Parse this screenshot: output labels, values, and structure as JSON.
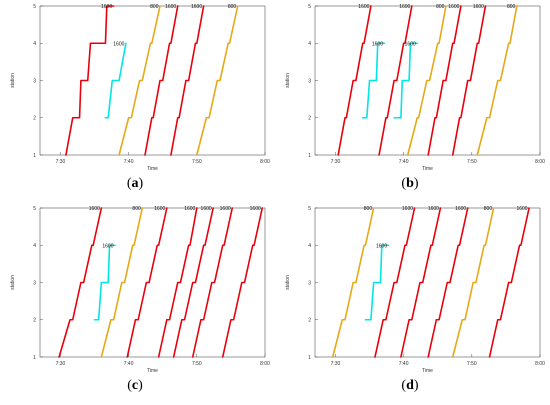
{
  "chart_data": [
    {
      "type": "line",
      "caption_letter": "a",
      "xlabel": "Time",
      "ylabel": "station",
      "x_ticks": [
        "7:30",
        "7:40",
        "7:50",
        "8:00"
      ],
      "y_ticks": [
        "1",
        "2",
        "3",
        "4",
        "5"
      ],
      "xlim": [
        "7:27",
        "8:00"
      ],
      "ylim": [
        1,
        5
      ],
      "series": [
        {
          "name": "1600",
          "color": "#e8000b",
          "x": [
            "7:30.8",
            "7:31.8",
            "7:32.8",
            "7:33.0",
            "7:34.0",
            "7:34.4",
            "7:35.4",
            "7:35.6",
            "7:36.6",
            "7:36.8",
            "7:37.8"
          ],
          "y": [
            1,
            2,
            2,
            3,
            3,
            4,
            4,
            4,
            4,
            5,
            5
          ]
        },
        {
          "name": "1600",
          "color": "#00e5e5",
          "x": [
            "7:36.6",
            "7:37.0",
            "7:37.6",
            "7:38.6",
            "7:39.6"
          ],
          "y": [
            2,
            2,
            3,
            3,
            4
          ]
        },
        {
          "name": "800",
          "color": "#e6a817",
          "x": [
            "7:38.6",
            "7:40.0",
            "7:40.4",
            "7:41.6",
            "7:42.0",
            "7:43.2",
            "7:43.4",
            "7:44.6"
          ],
          "y": [
            1,
            2,
            2,
            3,
            3,
            4,
            4,
            5
          ]
        },
        {
          "name": "1600",
          "color": "#e8000b",
          "x": [
            "7:42.4",
            "7:43.4",
            "7:43.6",
            "7:44.6",
            "7:45.0",
            "7:46.0",
            "7:46.2",
            "7:47.2"
          ],
          "y": [
            1,
            2,
            2,
            3,
            3,
            4,
            4,
            5
          ]
        },
        {
          "name": "1600",
          "color": "#e8000b",
          "x": [
            "7:46.2",
            "7:47.2",
            "7:47.4",
            "7:48.4",
            "7:48.8",
            "7:49.8",
            "7:50.0",
            "7:51.0"
          ],
          "y": [
            1,
            2,
            2,
            3,
            3,
            4,
            4,
            5
          ]
        },
        {
          "name": "800",
          "color": "#e6a817",
          "x": [
            "7:50.0",
            "7:51.4",
            "7:51.8",
            "7:53.0",
            "7:53.4",
            "7:54.6",
            "7:54.8",
            "7:56.0"
          ],
          "y": [
            1,
            2,
            2,
            3,
            3,
            4,
            4,
            5
          ]
        }
      ],
      "labels": [
        {
          "text": "1600",
          "x": "7:37.8",
          "y": 5
        },
        {
          "text": "1600",
          "x": "7:39.6",
          "y": 4
        },
        {
          "text": "800",
          "x": "7:44.6",
          "y": 5
        },
        {
          "text": "1600",
          "x": "7:47.2",
          "y": 5
        },
        {
          "text": "1600",
          "x": "7:51.0",
          "y": 5
        },
        {
          "text": "800",
          "x": "7:56.0",
          "y": 5
        }
      ]
    },
    {
      "type": "line",
      "caption_letter": "b",
      "xlabel": "Time",
      "ylabel": "station",
      "x_ticks": [
        "7:30",
        "7:40",
        "7:50",
        "8:00"
      ],
      "y_ticks": [
        "1",
        "2",
        "3",
        "4",
        "5"
      ],
      "xlim": [
        "7:27",
        "8:00"
      ],
      "ylim": [
        1,
        5
      ],
      "series": [
        {
          "name": "1600",
          "color": "#e8000b",
          "x": [
            "7:30.4",
            "7:31.4",
            "7:31.6",
            "7:32.6",
            "7:33.0",
            "7:34.0",
            "7:34.2",
            "7:35.2"
          ],
          "y": [
            1,
            2,
            2,
            3,
            3,
            4,
            4,
            5
          ]
        },
        {
          "name": "1600",
          "color": "#00e5e5",
          "x": [
            "7:34.0",
            "7:34.6",
            "7:35.0",
            "7:36.0",
            "7:36.2",
            "7:37.2"
          ],
          "y": [
            2,
            2,
            3,
            3,
            4,
            4
          ]
        },
        {
          "name": "1600",
          "color": "#e8000b",
          "x": [
            "7:36.4",
            "7:37.4",
            "7:37.6",
            "7:38.6",
            "7:39.0",
            "7:40.0",
            "7:40.2",
            "7:41.2"
          ],
          "y": [
            1,
            2,
            2,
            3,
            3,
            4,
            4,
            5
          ]
        },
        {
          "name": "1600",
          "color": "#00e5e5",
          "x": [
            "7:38.6",
            "7:39.6",
            "7:39.8",
            "7:40.8",
            "7:41.0",
            "7:42.0"
          ],
          "y": [
            2,
            2,
            3,
            3,
            4,
            4
          ]
        },
        {
          "name": "800",
          "color": "#e6a817",
          "x": [
            "7:40.6",
            "7:42.0",
            "7:42.2",
            "7:43.4",
            "7:43.8",
            "7:45.0",
            "7:45.2",
            "7:46.2"
          ],
          "y": [
            1,
            2,
            2,
            3,
            3,
            4,
            4,
            5
          ]
        },
        {
          "name": "1600",
          "color": "#e8000b",
          "x": [
            "7:43.6",
            "7:44.6",
            "7:44.8",
            "7:45.8",
            "7:46.2",
            "7:47.2",
            "7:47.4",
            "7:48.4"
          ],
          "y": [
            1,
            2,
            2,
            3,
            3,
            4,
            4,
            5
          ]
        },
        {
          "name": "1600",
          "color": "#e8000b",
          "x": [
            "7:47.2",
            "7:48.2",
            "7:48.4",
            "7:49.4",
            "7:49.8",
            "7:50.8",
            "7:51.0",
            "7:52.0"
          ],
          "y": [
            1,
            2,
            2,
            3,
            3,
            4,
            4,
            5
          ]
        },
        {
          "name": "800",
          "color": "#e6a817",
          "x": [
            "7:50.8",
            "7:52.2",
            "7:52.6",
            "7:53.8",
            "7:54.2",
            "7:55.4",
            "7:55.6",
            "7:56.6"
          ],
          "y": [
            1,
            2,
            2,
            3,
            3,
            4,
            4,
            5
          ]
        }
      ],
      "labels": [
        {
          "text": "1600",
          "x": "7:35.2",
          "y": 5
        },
        {
          "text": "1600",
          "x": "7:37.2",
          "y": 4
        },
        {
          "text": "1600",
          "x": "7:41.2",
          "y": 5
        },
        {
          "text": "1600",
          "x": "7:42.0",
          "y": 4
        },
        {
          "text": "800",
          "x": "7:46.2",
          "y": 5
        },
        {
          "text": "1600",
          "x": "7:48.4",
          "y": 5
        },
        {
          "text": "1600",
          "x": "7:52.0",
          "y": 5
        },
        {
          "text": "800",
          "x": "7:56.6",
          "y": 5
        }
      ]
    },
    {
      "type": "line",
      "caption_letter": "c",
      "xlabel": "Time",
      "ylabel": "station",
      "x_ticks": [
        "7:30",
        "7:40",
        "7:50",
        "8:00"
      ],
      "y_ticks": [
        "1",
        "2",
        "3",
        "4",
        "5"
      ],
      "xlim": [
        "7:27",
        "8:00"
      ],
      "ylim": [
        1,
        5
      ],
      "series": [
        {
          "name": "1600",
          "color": "#e8000b",
          "x": [
            "7:29.8",
            "7:31.4",
            "7:31.8",
            "7:33.0",
            "7:33.4",
            "7:34.6",
            "7:34.8",
            "7:36.0"
          ],
          "y": [
            1,
            2,
            2,
            3,
            3,
            4,
            4,
            5
          ]
        },
        {
          "name": "1600",
          "color": "#00e5e5",
          "x": [
            "7:35.0",
            "7:35.6",
            "7:36.0",
            "7:37.0",
            "7:37.2",
            "7:38.0"
          ],
          "y": [
            2,
            2,
            3,
            3,
            4,
            4
          ]
        },
        {
          "name": "800",
          "color": "#e6a817",
          "x": [
            "7:36.0",
            "7:37.4",
            "7:37.8",
            "7:39.0",
            "7:39.4",
            "7:40.6",
            "7:40.8",
            "7:42.0"
          ],
          "y": [
            1,
            2,
            2,
            3,
            3,
            4,
            4,
            5
          ]
        },
        {
          "name": "1600",
          "color": "#e8000b",
          "x": [
            "7:39.8",
            "7:41.0",
            "7:41.4",
            "7:42.6",
            "7:43.0",
            "7:44.2",
            "7:44.4",
            "7:45.6"
          ],
          "y": [
            1,
            2,
            2,
            3,
            3,
            4,
            4,
            5
          ]
        },
        {
          "name": "1600",
          "color": "#e8000b",
          "x": [
            "7:44.4",
            "7:45.6",
            "7:46.0",
            "7:47.2",
            "7:47.6",
            "7:48.8",
            "7:49.0",
            "7:50.0"
          ],
          "y": [
            1,
            2,
            2,
            3,
            3,
            4,
            4,
            5
          ]
        },
        {
          "name": "1600",
          "color": "#e8000b",
          "x": [
            "7:46.6",
            "7:47.8",
            "7:48.2",
            "7:49.4",
            "7:49.8",
            "7:51.0",
            "7:51.2",
            "7:52.4"
          ],
          "y": [
            1,
            2,
            2,
            3,
            3,
            4,
            4,
            5
          ]
        },
        {
          "name": "1600",
          "color": "#e8000b",
          "x": [
            "7:49.4",
            "7:50.6",
            "7:51.0",
            "7:52.2",
            "7:52.6",
            "7:53.8",
            "7:54.0",
            "7:55.2"
          ],
          "y": [
            1,
            2,
            2,
            3,
            3,
            4,
            4,
            5
          ]
        },
        {
          "name": "1600",
          "color": "#e8000b",
          "x": [
            "7:53.8",
            "7:55.0",
            "7:55.4",
            "7:56.6",
            "7:57.0",
            "7:58.2",
            "7:58.4",
            "7:59.6"
          ],
          "y": [
            1,
            2,
            2,
            3,
            3,
            4,
            4,
            5
          ]
        }
      ],
      "labels": [
        {
          "text": "1600",
          "x": "7:36.0",
          "y": 5
        },
        {
          "text": "1600",
          "x": "7:38.0",
          "y": 4
        },
        {
          "text": "800",
          "x": "7:42.0",
          "y": 5
        },
        {
          "text": "1600",
          "x": "7:45.6",
          "y": 5
        },
        {
          "text": "1600",
          "x": "7:50.0",
          "y": 5
        },
        {
          "text": "1600",
          "x": "7:52.4",
          "y": 5
        },
        {
          "text": "1600",
          "x": "7:55.2",
          "y": 5
        },
        {
          "text": "1600",
          "x": "7:59.6",
          "y": 5
        }
      ]
    },
    {
      "type": "line",
      "caption_letter": "d",
      "xlabel": "Time",
      "ylabel": "station",
      "x_ticks": [
        "7:30",
        "7:40",
        "7:50",
        "8:00"
      ],
      "y_ticks": [
        "1",
        "2",
        "3",
        "4",
        "5"
      ],
      "xlim": [
        "7:27",
        "8:00"
      ],
      "ylim": [
        1,
        5
      ],
      "series": [
        {
          "name": "800",
          "color": "#e6a817",
          "x": [
            "7:29.6",
            "7:31.0",
            "7:31.4",
            "7:32.6",
            "7:33.0",
            "7:34.2",
            "7:34.4",
            "7:35.6"
          ],
          "y": [
            1,
            2,
            2,
            3,
            3,
            4,
            4,
            5
          ]
        },
        {
          "name": "1600",
          "color": "#00e5e5",
          "x": [
            "7:34.4",
            "7:35.2",
            "7:35.6",
            "7:36.6",
            "7:36.8",
            "7:37.8"
          ],
          "y": [
            2,
            2,
            3,
            3,
            4,
            4
          ]
        },
        {
          "name": "1600",
          "color": "#e8000b",
          "x": [
            "7:35.8",
            "7:37.0",
            "7:37.4",
            "7:38.6",
            "7:39.0",
            "7:40.2",
            "7:40.4",
            "7:41.6"
          ],
          "y": [
            1,
            2,
            2,
            3,
            3,
            4,
            4,
            5
          ]
        },
        {
          "name": "1600",
          "color": "#e8000b",
          "x": [
            "7:39.6",
            "7:40.8",
            "7:41.2",
            "7:42.4",
            "7:42.8",
            "7:44.0",
            "7:44.2",
            "7:45.4"
          ],
          "y": [
            1,
            2,
            2,
            3,
            3,
            4,
            4,
            5
          ]
        },
        {
          "name": "1600",
          "color": "#e8000b",
          "x": [
            "7:43.6",
            "7:44.8",
            "7:45.2",
            "7:46.4",
            "7:46.8",
            "7:48.0",
            "7:48.2",
            "7:49.4"
          ],
          "y": [
            1,
            2,
            2,
            3,
            3,
            4,
            4,
            5
          ]
        },
        {
          "name": "800",
          "color": "#e6a817",
          "x": [
            "7:47.2",
            "7:48.6",
            "7:49.0",
            "7:50.2",
            "7:50.6",
            "7:51.8",
            "7:52.0",
            "7:53.2"
          ],
          "y": [
            1,
            2,
            2,
            3,
            3,
            4,
            4,
            5
          ]
        },
        {
          "name": "1600",
          "color": "#e8000b",
          "x": [
            "7:52.6",
            "7:53.8",
            "7:54.2",
            "7:55.4",
            "7:55.8",
            "7:57.0",
            "7:57.2",
            "7:58.4"
          ],
          "y": [
            1,
            2,
            2,
            3,
            3,
            4,
            4,
            5
          ]
        }
      ],
      "labels": [
        {
          "text": "800",
          "x": "7:35.6",
          "y": 5
        },
        {
          "text": "1600",
          "x": "7:37.8",
          "y": 4
        },
        {
          "text": "1600",
          "x": "7:41.6",
          "y": 5
        },
        {
          "text": "1600",
          "x": "7:45.4",
          "y": 5
        },
        {
          "text": "1600",
          "x": "7:49.4",
          "y": 5
        },
        {
          "text": "800",
          "x": "7:53.2",
          "y": 5
        },
        {
          "text": "1600",
          "x": "7:58.4",
          "y": 5
        }
      ]
    }
  ]
}
